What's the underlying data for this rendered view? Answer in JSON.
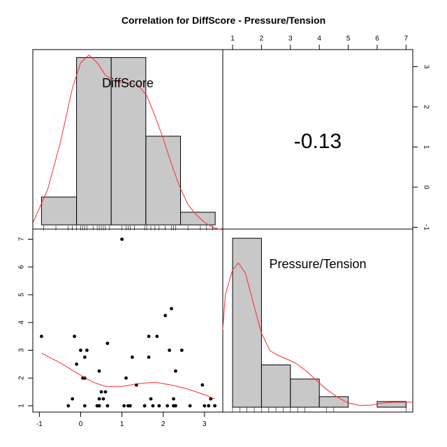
{
  "title": "Correlation  for DiffScore - Pressure/Tension",
  "variables": [
    "DiffScore",
    "Pressure/Tension"
  ],
  "correlation_text": "-0.13",
  "colors": {
    "bar_fill": "#c8c8c8",
    "density": "#ff2a2a",
    "points": "#000000"
  },
  "chart_data": [
    {
      "type": "bar",
      "panel": "diag-DiffScore",
      "bins": [
        [
          -0.95,
          -0.1
        ],
        [
          -0.1,
          0.74
        ],
        [
          0.74,
          1.58
        ],
        [
          1.58,
          2.42
        ],
        [
          2.42,
          3.26
        ]
      ],
      "values": [
        0.55,
        3.3,
        3.3,
        1.75,
        0.25
      ],
      "density": [
        [
          -1.2,
          0.05
        ],
        [
          -0.8,
          0.7
        ],
        [
          -0.5,
          1.6
        ],
        [
          -0.2,
          2.7
        ],
        [
          0.0,
          3.2
        ],
        [
          0.2,
          3.35
        ],
        [
          0.4,
          3.2
        ],
        [
          0.6,
          2.95
        ],
        [
          0.8,
          2.85
        ],
        [
          1.0,
          2.8
        ],
        [
          1.2,
          2.8
        ],
        [
          1.4,
          2.75
        ],
        [
          1.6,
          2.55
        ],
        [
          1.8,
          2.15
        ],
        [
          2.0,
          1.7
        ],
        [
          2.2,
          1.2
        ],
        [
          2.4,
          0.75
        ],
        [
          2.6,
          0.4
        ],
        [
          2.8,
          0.2
        ],
        [
          3.0,
          0.05
        ],
        [
          3.2,
          -0.05
        ],
        [
          3.5,
          -0.1
        ]
      ],
      "rug": [
        -0.9,
        -0.6,
        -0.3,
        -0.2,
        -0.1,
        0.0,
        0.05,
        0.1,
        0.15,
        0.3,
        0.4,
        0.45,
        0.5,
        0.55,
        0.6,
        0.7,
        1.0,
        1.1,
        1.15,
        1.2,
        1.3,
        1.55,
        1.6,
        1.7,
        1.8,
        1.9,
        2.05,
        2.2,
        2.25,
        2.3,
        2.6,
        2.9,
        3.05,
        3.2
      ]
    },
    {
      "type": "table",
      "panel": "upper-correlation",
      "value": -0.13,
      "x_ticks": [
        1,
        2,
        3,
        4,
        5,
        6,
        7
      ],
      "y_ticks": [
        -1,
        0,
        1,
        2,
        3
      ]
    },
    {
      "type": "scatter",
      "panel": "lower-scatter",
      "x_ticks": [
        -1,
        0,
        1,
        2,
        3
      ],
      "y_ticks": [
        1,
        2,
        3,
        4,
        5,
        6,
        7
      ],
      "points": [
        [
          -0.95,
          3.5
        ],
        [
          -0.3,
          1.0
        ],
        [
          -0.2,
          1.25
        ],
        [
          -0.15,
          3.5
        ],
        [
          -0.1,
          2.5
        ],
        [
          0.0,
          3.0
        ],
        [
          0.05,
          2.0
        ],
        [
          0.1,
          2.0
        ],
        [
          0.1,
          2.75
        ],
        [
          0.15,
          3.0
        ],
        [
          0.1,
          1.0
        ],
        [
          0.4,
          1.0
        ],
        [
          0.45,
          1.0
        ],
        [
          0.45,
          1.25
        ],
        [
          0.45,
          2.25
        ],
        [
          0.5,
          1.5
        ],
        [
          0.55,
          1.25
        ],
        [
          0.6,
          1.5
        ],
        [
          0.65,
          3.25
        ],
        [
          0.65,
          1.0
        ],
        [
          1.0,
          7.0
        ],
        [
          1.05,
          1.0
        ],
        [
          1.1,
          2.0
        ],
        [
          1.15,
          1.0
        ],
        [
          1.2,
          1.0
        ],
        [
          1.25,
          2.75
        ],
        [
          1.35,
          1.75
        ],
        [
          1.55,
          1.0
        ],
        [
          1.65,
          3.5
        ],
        [
          1.65,
          2.75
        ],
        [
          1.7,
          1.25
        ],
        [
          1.75,
          1.0
        ],
        [
          1.85,
          3.5
        ],
        [
          1.9,
          1.0
        ],
        [
          2.05,
          4.25
        ],
        [
          2.1,
          1.0
        ],
        [
          2.15,
          3.0
        ],
        [
          2.2,
          4.5
        ],
        [
          2.25,
          1.25
        ],
        [
          2.25,
          1.0
        ],
        [
          2.3,
          1.0
        ],
        [
          2.3,
          2.25
        ],
        [
          2.45,
          3.0
        ],
        [
          2.65,
          1.0
        ],
        [
          2.95,
          1.75
        ],
        [
          3.0,
          1.0
        ],
        [
          3.1,
          1.0
        ],
        [
          3.15,
          1.25
        ],
        [
          3.25,
          1.0
        ]
      ],
      "smooth": [
        [
          -0.95,
          2.9
        ],
        [
          -0.5,
          2.55
        ],
        [
          0.0,
          2.1
        ],
        [
          0.3,
          1.85
        ],
        [
          0.6,
          1.7
        ],
        [
          1.0,
          1.7
        ],
        [
          1.4,
          1.8
        ],
        [
          1.8,
          1.85
        ],
        [
          2.2,
          1.75
        ],
        [
          2.6,
          1.6
        ],
        [
          3.0,
          1.4
        ],
        [
          3.25,
          1.25
        ]
      ]
    },
    {
      "type": "bar",
      "panel": "diag-Pressure/Tension",
      "bins": [
        [
          1,
          2
        ],
        [
          2,
          3
        ],
        [
          3,
          4
        ],
        [
          4,
          5
        ],
        [
          5,
          6
        ],
        [
          6,
          7
        ]
      ],
      "values": [
        24,
        6,
        4,
        1.5,
        0,
        0.8
      ],
      "density": [
        [
          0.5,
          11
        ],
        [
          0.75,
          16
        ],
        [
          1.0,
          19.5
        ],
        [
          1.2,
          20.5
        ],
        [
          1.45,
          19
        ],
        [
          1.7,
          15
        ],
        [
          2.0,
          10.5
        ],
        [
          2.3,
          8
        ],
        [
          2.6,
          7.3
        ],
        [
          2.9,
          6.8
        ],
        [
          3.2,
          6.2
        ],
        [
          3.5,
          5.3
        ],
        [
          3.8,
          4.2
        ],
        [
          4.2,
          2.7
        ],
        [
          4.6,
          1.5
        ],
        [
          5.0,
          0.6
        ],
        [
          5.4,
          0.25
        ],
        [
          5.8,
          0.3
        ],
        [
          6.2,
          0.6
        ],
        [
          6.6,
          0.7
        ],
        [
          7.2,
          0.7
        ]
      ],
      "rug": [
        1.0,
        1.25,
        1.5,
        1.75,
        2.0,
        2.25,
        2.5,
        2.75,
        3.0,
        3.25,
        3.5,
        4.25,
        4.5,
        7.0
      ]
    }
  ]
}
